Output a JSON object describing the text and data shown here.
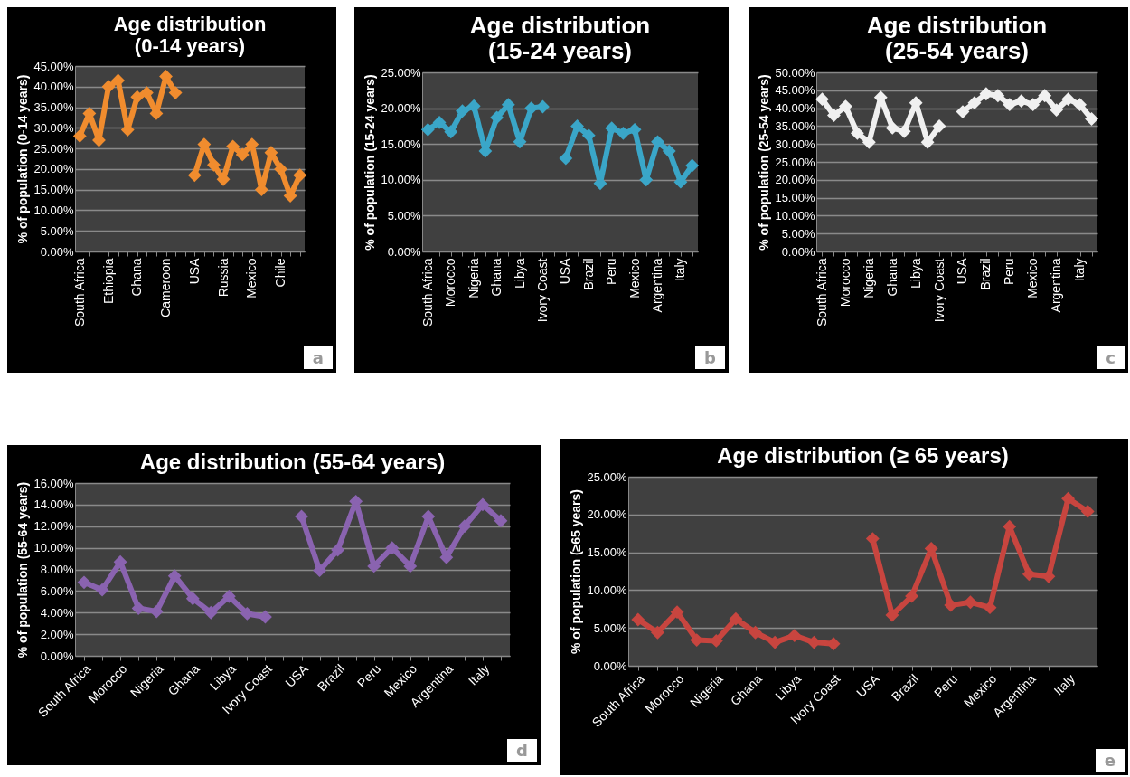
{
  "chart_data": [
    {
      "type": "line",
      "title": "Age distribution (0-14 years)",
      "ylabel": "% of population (0-14 years)",
      "categories": [
        "South Africa",
        null,
        null,
        "Ethiopia",
        null,
        null,
        "Ghana",
        null,
        null,
        "Cameroon",
        null,
        null,
        "USA",
        null,
        null,
        "Russia",
        null,
        null,
        "Mexico",
        null,
        null,
        "Chile",
        null,
        null
      ],
      "series": [
        {
          "color": "#f08c2e",
          "values": [
            28,
            33.5,
            27,
            40,
            41.5,
            29.5,
            37.5,
            38.5,
            33.5,
            42.5,
            38.5,
            null,
            18.5,
            26,
            21,
            17.5,
            25.5,
            23.5,
            26,
            15,
            24,
            20,
            13.5,
            18.5
          ]
        }
      ],
      "ylim": [
        0,
        45
      ],
      "yticks": [
        {
          "value": 0,
          "label": "0.00%"
        },
        {
          "value": 5,
          "label": "5.00%"
        },
        {
          "value": 10,
          "label": "10.00%"
        },
        {
          "value": 15,
          "label": "15.00%"
        },
        {
          "value": 20,
          "label": "20.00%"
        },
        {
          "value": 25,
          "label": "25.00%"
        },
        {
          "value": 30,
          "label": "30.00%"
        },
        {
          "value": 35,
          "label": "35.00%"
        },
        {
          "value": 40,
          "label": "40.00%"
        },
        {
          "value": 45,
          "label": "45.00%"
        }
      ],
      "grid": "y",
      "marker": "diamond",
      "annotations": [
        "a"
      ]
    },
    {
      "type": "line",
      "title": "Age distribution (15-24 years)",
      "ylabel": "% of population (15-24 years)",
      "categories": [
        "South Africa",
        null,
        "Morocco",
        null,
        "Nigeria",
        null,
        "Ghana",
        null,
        "Libya",
        null,
        "Ivory Coast",
        null,
        "USA",
        null,
        "Brazil",
        null,
        "Peru",
        null,
        "Mexico",
        null,
        "Argentina",
        null,
        "Italy",
        null
      ],
      "series": [
        {
          "color": "#3aa6c8",
          "values": [
            17,
            18,
            16.7,
            19.6,
            20.3,
            14,
            18.7,
            20.5,
            15.3,
            20,
            20.2,
            null,
            13,
            17.5,
            16.2,
            9.5,
            17.2,
            16.5,
            17,
            10,
            15.3,
            14,
            9.7,
            12
          ]
        }
      ],
      "ylim": [
        0,
        25
      ],
      "yticks": [
        {
          "value": 0,
          "label": "0.00%"
        },
        {
          "value": 5,
          "label": "5.00%"
        },
        {
          "value": 10,
          "label": "10.00%"
        },
        {
          "value": 15,
          "label": "15.00%"
        },
        {
          "value": 20,
          "label": "20.00%"
        },
        {
          "value": 25,
          "label": "25.00%"
        }
      ],
      "grid": "y",
      "marker": "diamond",
      "annotations": [
        "b"
      ]
    },
    {
      "type": "line",
      "title": "Age distribution (25-54 years)",
      "ylabel": "% of population (25-54 years)",
      "categories": [
        "South Africa",
        null,
        "Morocco",
        null,
        "Nigeria",
        null,
        "Ghana",
        null,
        "Libya",
        null,
        "Ivory Coast",
        null,
        "USA",
        null,
        "Brazil",
        null,
        "Peru",
        null,
        "Mexico",
        null,
        "Argentina",
        null,
        "Italy",
        null
      ],
      "series": [
        {
          "color": "#f0f0f0",
          "values": [
            42.5,
            38,
            40.5,
            33,
            30.5,
            43,
            34.5,
            33.5,
            41.5,
            30.5,
            35,
            null,
            39,
            41.5,
            44,
            43.5,
            41,
            42,
            41,
            43.5,
            39.5,
            42.5,
            41,
            37
          ]
        }
      ],
      "ylim": [
        0,
        50
      ],
      "yticks": [
        {
          "value": 0,
          "label": "0.00%"
        },
        {
          "value": 5,
          "label": "5.00%"
        },
        {
          "value": 10,
          "label": "10.00%"
        },
        {
          "value": 15,
          "label": "15.00%"
        },
        {
          "value": 20,
          "label": "20.00%"
        },
        {
          "value": 25,
          "label": "25.00%"
        },
        {
          "value": 30,
          "label": "30.00%"
        },
        {
          "value": 35,
          "label": "35.00%"
        },
        {
          "value": 40,
          "label": "40.00%"
        },
        {
          "value": 45,
          "label": "45.00%"
        },
        {
          "value": 50,
          "label": "50.00%"
        }
      ],
      "grid": "y",
      "marker": "diamond",
      "annotations": [
        "c"
      ]
    },
    {
      "type": "line",
      "title": "Age distribution (55-64 years)",
      "ylabel": "% of population (55-64 years)",
      "categories": [
        "South Africa",
        null,
        "Morocco",
        null,
        "Nigeria",
        null,
        "Ghana",
        null,
        "Libya",
        null,
        "Ivory Coast",
        null,
        "USA",
        null,
        "Brazil",
        null,
        "Peru",
        null,
        "Mexico",
        null,
        "Argentina",
        null,
        "Italy",
        null
      ],
      "series": [
        {
          "color": "#8a63b0",
          "values": [
            6.8,
            6.1,
            8.7,
            4.4,
            4.1,
            7.4,
            5.3,
            4,
            5.5,
            3.9,
            3.6,
            null,
            12.9,
            7.9,
            9.8,
            14.3,
            8.3,
            10,
            8.3,
            12.9,
            9.1,
            12,
            14,
            12.5
          ]
        }
      ],
      "ylim": [
        0,
        16
      ],
      "yticks": [
        {
          "value": 0,
          "label": "0.00%"
        },
        {
          "value": 2,
          "label": "2.00%"
        },
        {
          "value": 4,
          "label": "4.00%"
        },
        {
          "value": 6,
          "label": "6.00%"
        },
        {
          "value": 8,
          "label": "8.00%"
        },
        {
          "value": 10,
          "label": "10.00%"
        },
        {
          "value": 12,
          "label": "12.00%"
        },
        {
          "value": 14,
          "label": "14.00%"
        },
        {
          "value": 16,
          "label": "16.00%"
        }
      ],
      "grid": "y",
      "marker": "diamond",
      "annotations": [
        "d"
      ]
    },
    {
      "type": "line",
      "title": "Age distribution (≥ 65 years)",
      "ylabel": "% of population (≥65 years)",
      "categories": [
        "South Africa",
        null,
        "Morocco",
        null,
        "Nigeria",
        null,
        "Ghana",
        null,
        "Libya",
        null,
        "Ivory Coast",
        null,
        "USA",
        null,
        "Brazil",
        null,
        "Peru",
        null,
        "Mexico",
        null,
        "Argentina",
        null,
        "Italy",
        null
      ],
      "series": [
        {
          "color": "#c8453f",
          "values": [
            6.1,
            4.4,
            7.1,
            3.4,
            3.3,
            6.2,
            4.4,
            3.1,
            4,
            3.1,
            2.9,
            null,
            16.8,
            6.7,
            9.2,
            15.5,
            8,
            8.4,
            7.7,
            18.4,
            12.1,
            11.8,
            22.1,
            20.4
          ]
        }
      ],
      "ylim": [
        0,
        25
      ],
      "yticks": [
        {
          "value": 0,
          "label": "0.00%"
        },
        {
          "value": 5,
          "label": "5.00%"
        },
        {
          "value": 10,
          "label": "10.00%"
        },
        {
          "value": 15,
          "label": "15.00%"
        },
        {
          "value": 20,
          "label": "20.00%"
        },
        {
          "value": 25,
          "label": "25.00%"
        }
      ],
      "grid": "y",
      "marker": "diamond",
      "annotations": [
        "e"
      ]
    }
  ]
}
